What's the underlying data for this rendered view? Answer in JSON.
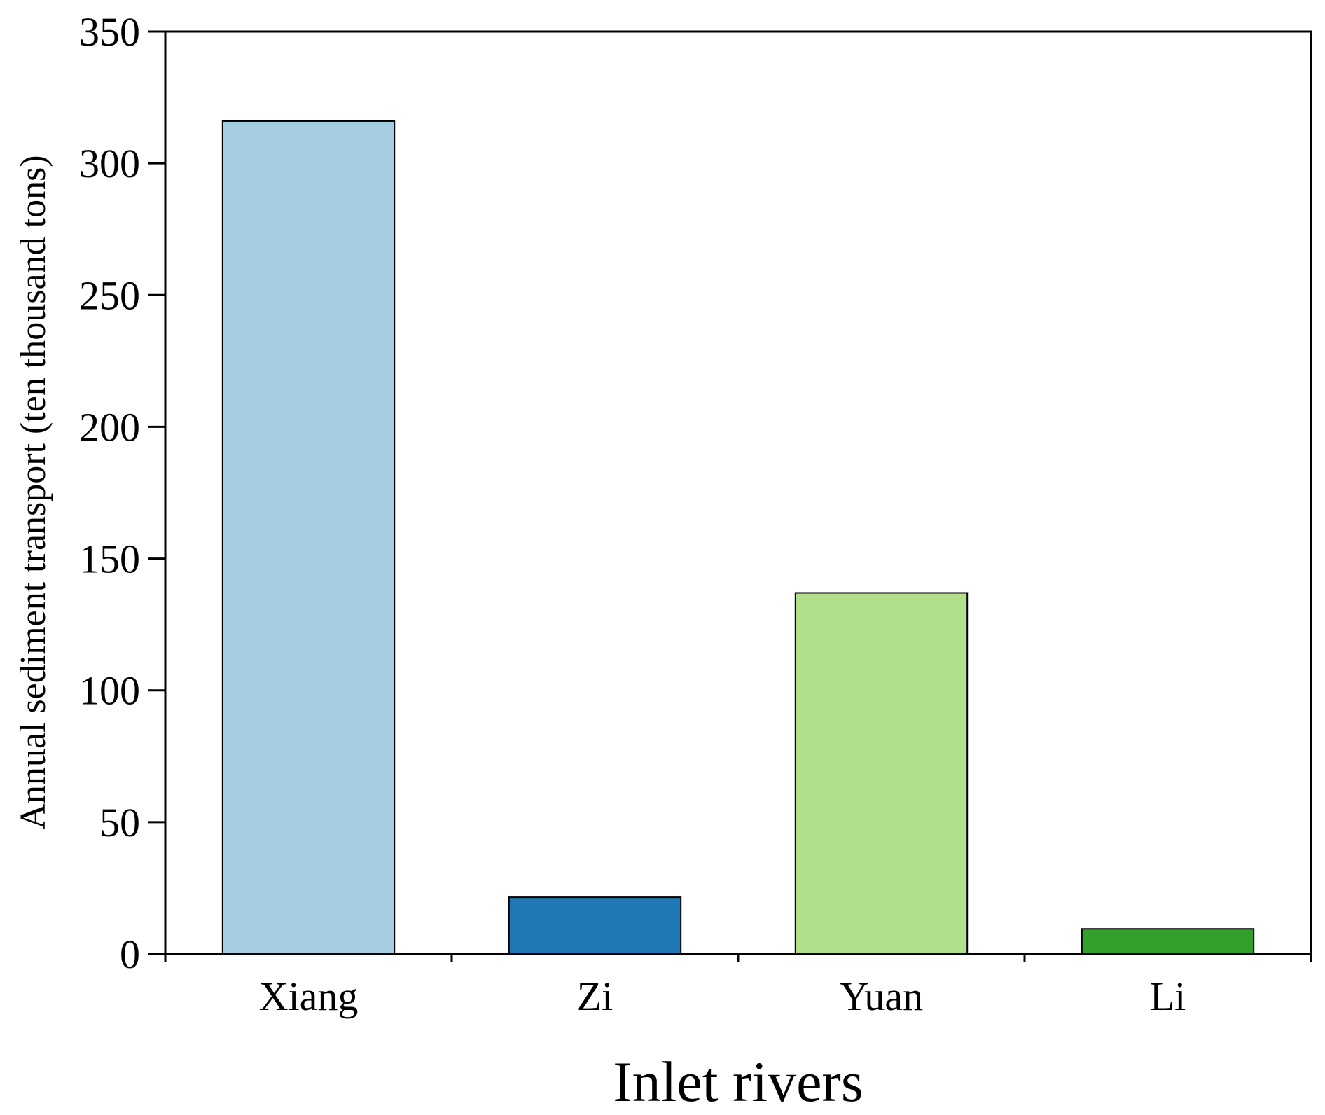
{
  "chart_data": {
    "type": "bar",
    "categories": [
      "Xiang",
      "Zi",
      "Yuan",
      "Li"
    ],
    "values": [
      316,
      21.5,
      137,
      9.5
    ],
    "colors": [
      "#a6cee3",
      "#1f78b4",
      "#b2df8a",
      "#33a02c"
    ],
    "xlabel": "Inlet rivers",
    "ylabel": "Annual sediment transport (ten thousand tons)",
    "ylim": [
      0,
      350
    ],
    "yticks": [
      0,
      50,
      100,
      150,
      200,
      250,
      300,
      350
    ],
    "grid": false
  }
}
